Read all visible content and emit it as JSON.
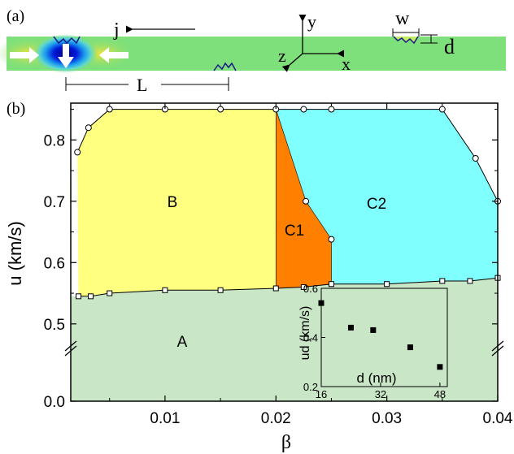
{
  "panel_a": {
    "label": "(a)",
    "current_symbol": "j",
    "width_symbol": "w",
    "depth_symbol": "d",
    "spacing_symbol": "L",
    "axis_x": "x",
    "axis_y": "y",
    "axis_z": "z"
  },
  "chart_data": [
    {
      "panel": "(b)",
      "type": "area",
      "xlabel": "β",
      "ylabel": "u (km/s)",
      "xlim": [
        0.0015,
        0.04
      ],
      "ylim_upper_segment": [
        0.46,
        0.86
      ],
      "ylim_lower_segment": [
        0.0,
        0.1
      ],
      "axis_break": "between 0.0 and 0.5 on y",
      "x_ticks": [
        "0.01",
        "0.02",
        "0.03",
        "0.04"
      ],
      "y_ticks": [
        "0.0",
        "0.5",
        "0.6",
        "0.7",
        "0.8"
      ],
      "regions": [
        {
          "name": "A",
          "color": "#c9e6c6"
        },
        {
          "name": "B",
          "color": "#ffff80"
        },
        {
          "name": "C1",
          "color": "#ff7f00"
        },
        {
          "name": "C2",
          "color": "#80ffff"
        }
      ],
      "series": [
        {
          "name": "lower boundary",
          "marker": "square",
          "x": [
            0.0022,
            0.0033,
            0.005,
            0.01,
            0.015,
            0.02,
            0.0225,
            0.025,
            0.03,
            0.035,
            0.0375,
            0.04
          ],
          "y": [
            0.545,
            0.545,
            0.55,
            0.555,
            0.555,
            0.558,
            0.56,
            0.565,
            0.565,
            0.57,
            0.57,
            0.575
          ]
        },
        {
          "name": "upper boundary",
          "marker": "circle",
          "x": [
            0.0021,
            0.0031,
            0.005,
            0.01,
            0.015,
            0.02,
            0.0225,
            0.025,
            0.035,
            0.038,
            0.04
          ],
          "y": [
            0.78,
            0.82,
            0.85,
            0.85,
            0.85,
            0.85,
            0.85,
            0.85,
            0.85,
            0.77,
            0.7
          ]
        },
        {
          "name": "C1 boundary",
          "marker": "circle",
          "x": [
            0.0227,
            0.025
          ],
          "y": [
            0.7,
            0.638
          ]
        }
      ]
    },
    {
      "panel": "inset",
      "type": "scatter",
      "xlabel": "d (nm)",
      "ylabel": "ud (km/s)",
      "xlim": [
        16,
        50
      ],
      "ylim": [
        0.2,
        0.6
      ],
      "x_ticks": [
        "16",
        "32",
        "48"
      ],
      "y_ticks": [
        "0.2",
        "0.4",
        "0.6"
      ],
      "x": [
        16,
        24,
        30,
        40,
        48
      ],
      "y": [
        0.54,
        0.44,
        0.43,
        0.36,
        0.28
      ]
    }
  ]
}
